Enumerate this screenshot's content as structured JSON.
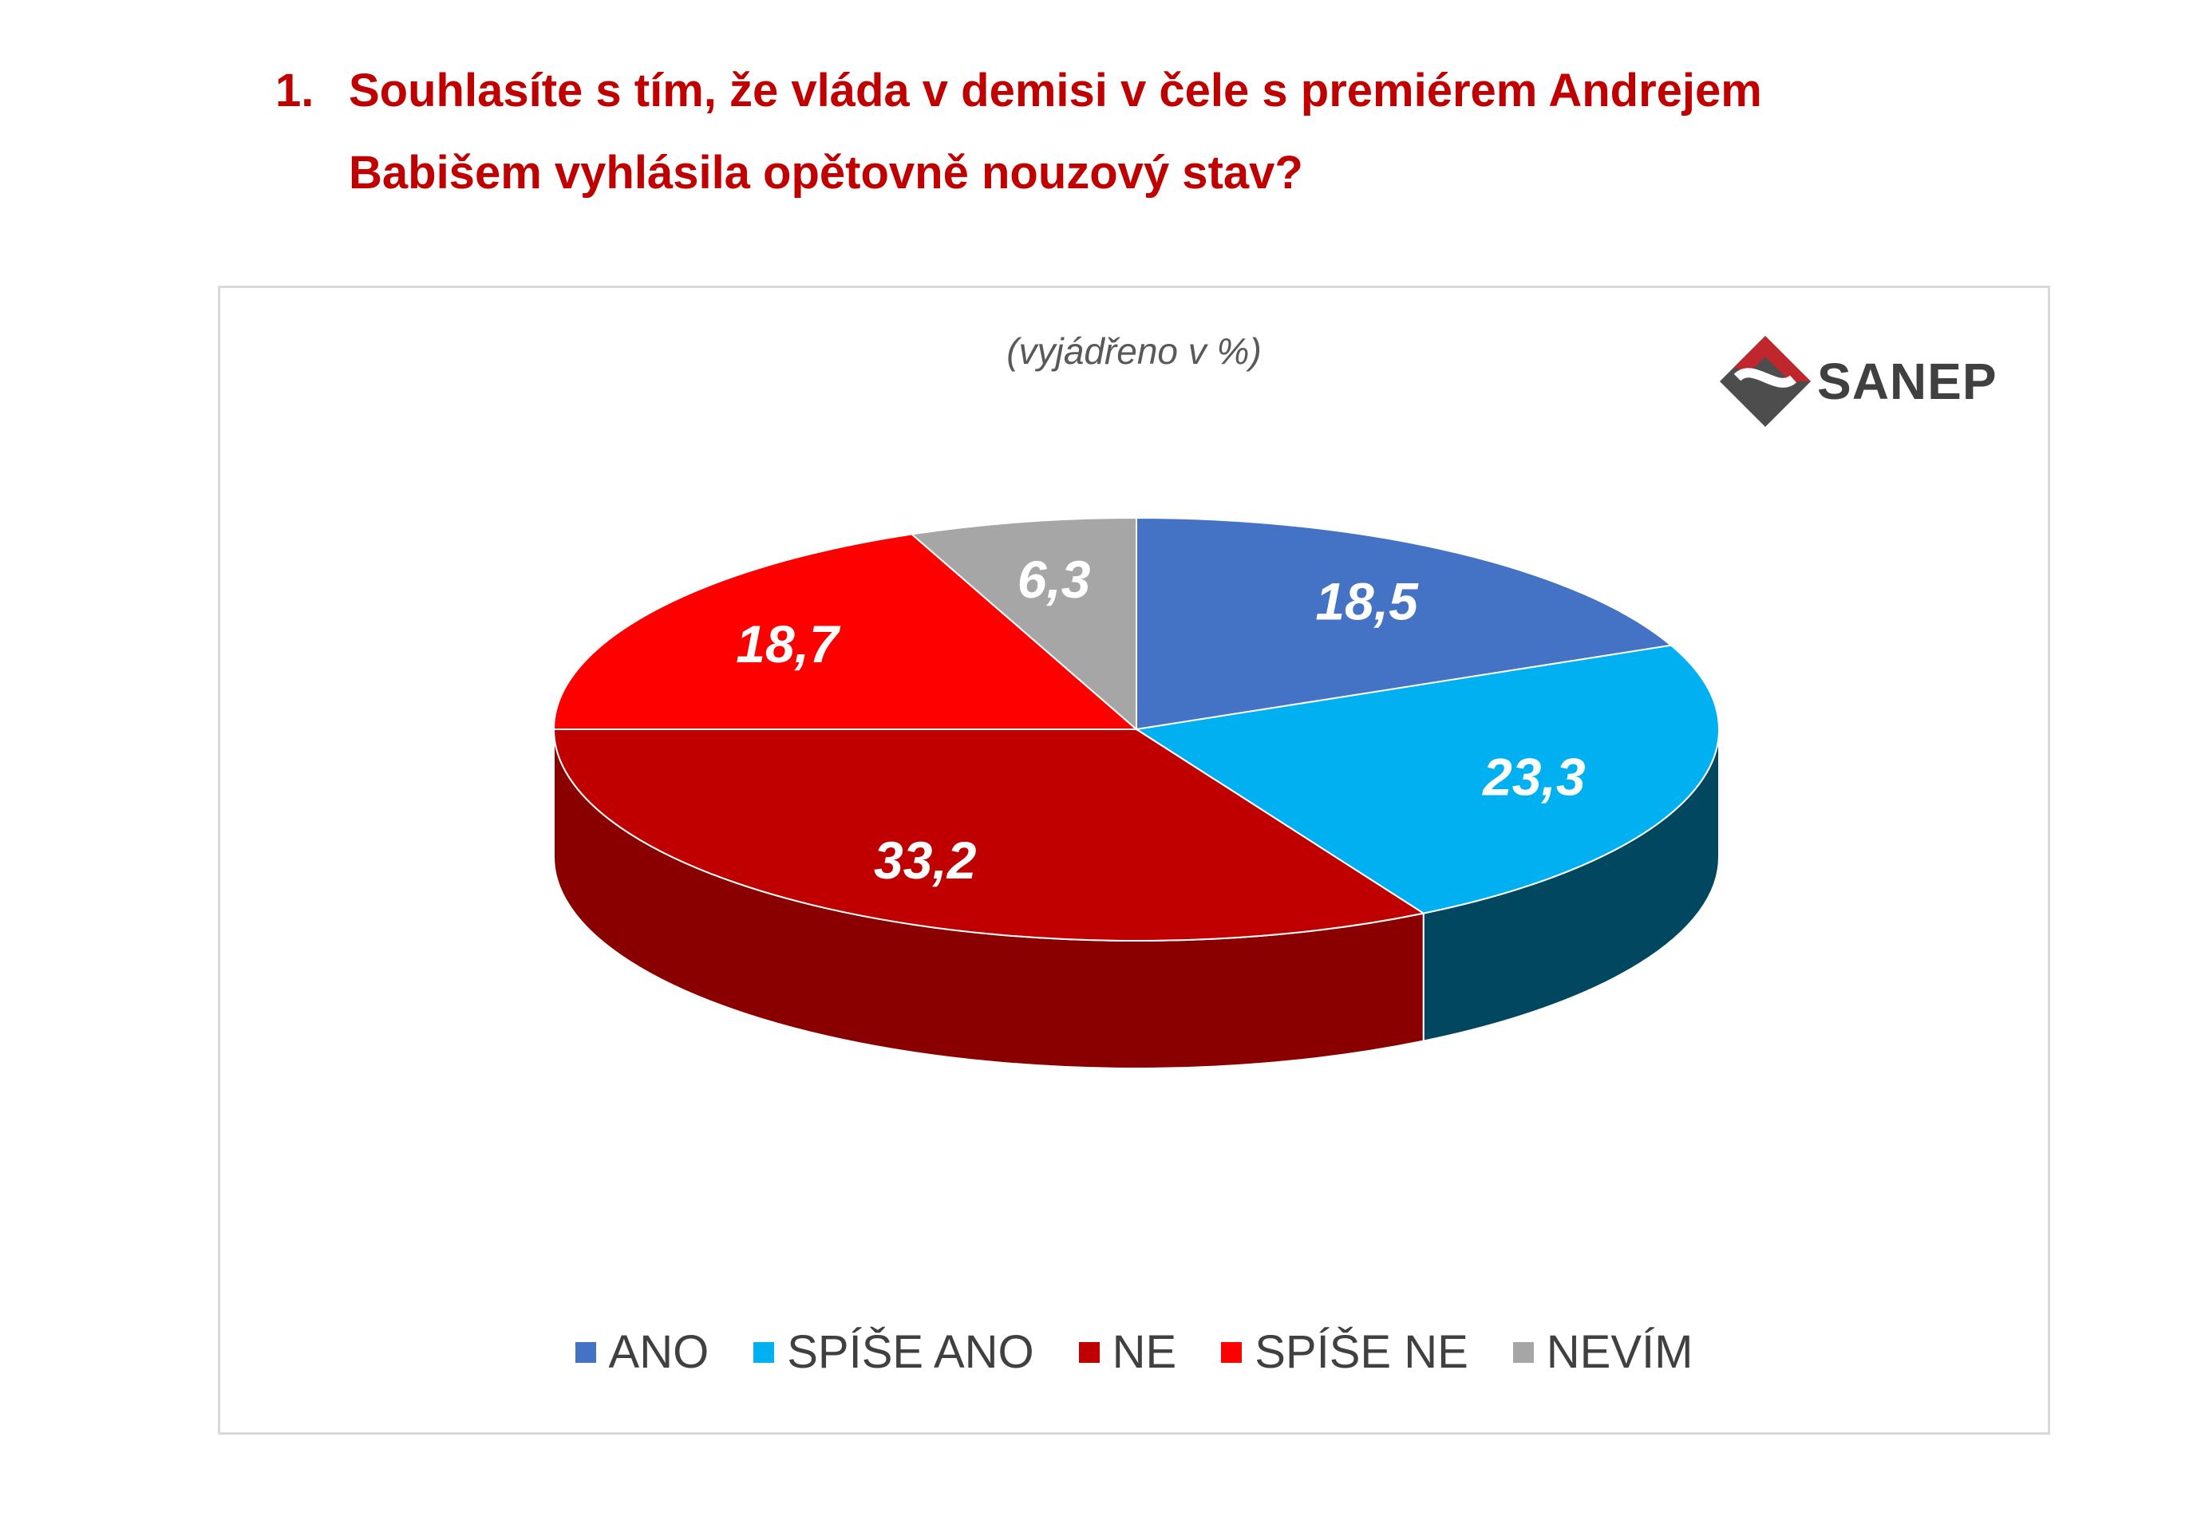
{
  "question": {
    "number": "1.",
    "line1": "Souhlasíte s tím, že vláda v demisi v čele s premiérem Andrejem",
    "line2": "Babišem vyhlásila opětovně nouzový stav?"
  },
  "logo": {
    "text": "SANEP",
    "colors": {
      "red": "#c0272d",
      "gray": "#4d4d4d"
    }
  },
  "chart_data": {
    "type": "pie",
    "subtitle": "(vyjádřeno v %)",
    "style": "3d",
    "start_angle_deg": 0,
    "direction": "clockwise",
    "legend_position": "bottom",
    "slices": [
      {
        "name": "ANO",
        "value": 18.5,
        "label": "18,5",
        "color": "#4472c4",
        "side_color": "#2e4f8a"
      },
      {
        "name": "SPÍŠE ANO",
        "value": 23.3,
        "label": "23,3",
        "color": "#00b0f0",
        "side_color": "#00475f"
      },
      {
        "name": "NE",
        "value": 33.2,
        "label": "33,2",
        "color": "#c00000",
        "side_color": "#8a0000"
      },
      {
        "name": "SPÍŠE NE",
        "value": 18.7,
        "label": "18,7",
        "color": "#ff0000",
        "side_color": "#b00000"
      },
      {
        "name": "NEVÍM",
        "value": 6.3,
        "label": "6,3",
        "color": "#a6a6a6",
        "side_color": "#6e6e6e"
      }
    ]
  }
}
